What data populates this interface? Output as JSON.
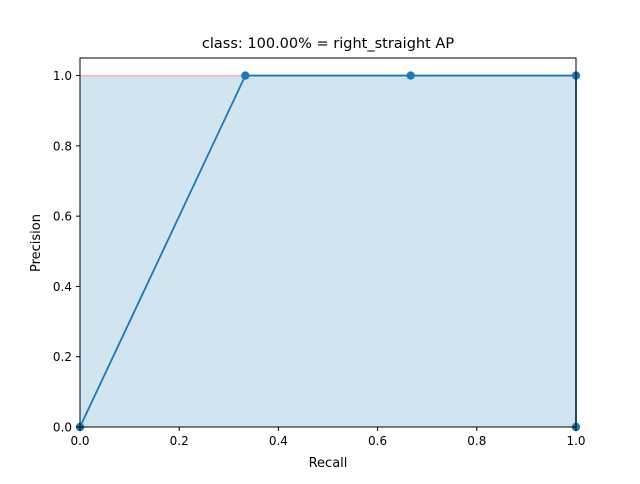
{
  "chart_data": {
    "type": "area",
    "title": "class: 100.00% = right_straight AP",
    "xlabel": "Recall",
    "ylabel": "Precision",
    "xlim": [
      0.0,
      1.0
    ],
    "ylim": [
      0.0,
      1.05
    ],
    "xticks": [
      "0.0",
      "0.2",
      "0.4",
      "0.6",
      "0.8",
      "1.0"
    ],
    "yticks": [
      "0.0",
      "0.2",
      "0.4",
      "0.6",
      "0.8",
      "1.0"
    ],
    "grid": false,
    "legend": "none",
    "series": [
      {
        "kind": "line-with-markers",
        "color": "#1f77b4",
        "x": [
          0.0,
          0.3333,
          0.6667,
          1.0,
          1.0
        ],
        "y": [
          0.0,
          1.0,
          1.0,
          1.0,
          0.0
        ]
      },
      {
        "kind": "filled-area",
        "color": "#1f77b4",
        "opacity": 0.2,
        "x": [
          0.0,
          0.0,
          1.0,
          1.0
        ],
        "y": [
          0.0,
          1.0,
          1.0,
          0.0
        ]
      },
      {
        "kind": "line",
        "color": "#ff0000",
        "opacity": 0.25,
        "x": [
          0.0,
          1.0
        ],
        "y": [
          1.0,
          1.0
        ]
      }
    ]
  }
}
